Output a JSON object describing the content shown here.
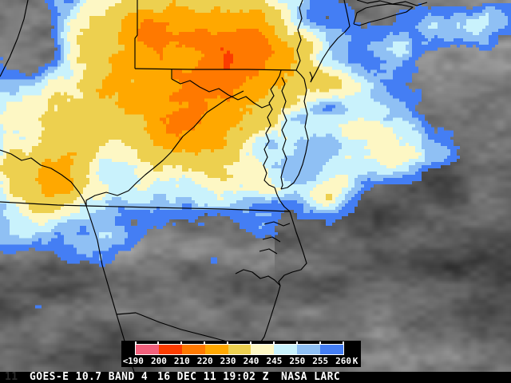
{
  "status_bar": {
    "corner": "11",
    "product": "GOES-E 10.7 BAND 4",
    "timestamp": "16 DEC 11 19:02 Z",
    "agency": "NASA LARC",
    "text_color": "#FFFFFF",
    "bg": "#000000"
  },
  "legend": {
    "prefix": "<",
    "ticks": [
      "190",
      "200",
      "210",
      "220",
      "230",
      "240",
      "245",
      "250",
      "255",
      "260"
    ],
    "unit": "K",
    "panel_bg": "#000000",
    "frame_color": "#FFFFFF"
  },
  "map": {
    "boundary_color": "#000000",
    "cold_cloud_bands": [
      {
        "max_k": 200,
        "color": "#F1607C"
      },
      {
        "max_k": 210,
        "color": "#FB3C00"
      },
      {
        "max_k": 220,
        "color": "#FF7900"
      },
      {
        "max_k": 230,
        "color": "#FFA800"
      },
      {
        "max_k": 240,
        "color": "#EDD04F"
      },
      {
        "max_k": 245,
        "color": "#FDF7C4"
      },
      {
        "max_k": 250,
        "color": "#C9F2FC"
      },
      {
        "max_k": 255,
        "color": "#8FC0F4"
      },
      {
        "max_k": 260,
        "color": "#447EF4"
      }
    ],
    "cold_blobs": [
      [
        225,
        105,
        190,
        140,
        44
      ],
      [
        255,
        55,
        95,
        50,
        16
      ],
      [
        150,
        25,
        85,
        35,
        10
      ],
      [
        235,
        168,
        75,
        40,
        13
      ],
      [
        62,
        148,
        48,
        55,
        12
      ],
      [
        55,
        212,
        55,
        38,
        12
      ],
      [
        65,
        245,
        65,
        50,
        26
      ],
      [
        340,
        60,
        70,
        65,
        12
      ],
      [
        420,
        100,
        26,
        20,
        10
      ],
      [
        330,
        240,
        45,
        25,
        14
      ],
      [
        405,
        252,
        42,
        20,
        15
      ],
      [
        450,
        150,
        55,
        42,
        16
      ],
      [
        510,
        178,
        55,
        35,
        12
      ],
      [
        470,
        205,
        50,
        28,
        12
      ],
      [
        545,
        200,
        25,
        15,
        10
      ],
      [
        560,
        32,
        55,
        30,
        12
      ],
      [
        612,
        22,
        28,
        22,
        13
      ],
      [
        495,
        62,
        38,
        26,
        11
      ],
      [
        600,
        60,
        35,
        25,
        9
      ],
      [
        48,
        387,
        9,
        8,
        14
      ],
      [
        95,
        315,
        40,
        22,
        10
      ],
      [
        25,
        300,
        45,
        30,
        10
      ],
      [
        150,
        298,
        28,
        14,
        9
      ],
      [
        5,
        60,
        30,
        90,
        12
      ],
      [
        8,
        180,
        25,
        60,
        10
      ],
      [
        430,
        235,
        45,
        25,
        10
      ]
    ],
    "warm_spots": [
      [
        28,
        55,
        42,
        48,
        26
      ],
      [
        240,
        72,
        30,
        16,
        14
      ],
      [
        415,
        135,
        22,
        10,
        10
      ],
      [
        398,
        18,
        26,
        18,
        12
      ]
    ],
    "borders": [
      [
        0,
        96,
        12,
        72,
        22,
        48,
        30,
        24,
        35,
        0
      ],
      [
        172,
        0,
        172,
        44,
        169,
        48,
        169,
        86
      ],
      [
        169,
        86,
        240,
        87,
        310,
        87,
        371,
        88
      ],
      [
        215,
        87,
        215,
        99
      ],
      [
        215,
        99,
        226,
        105,
        238,
        101,
        250,
        109,
        262,
        115,
        274,
        111,
        286,
        119,
        298,
        125,
        308,
        121,
        318,
        129,
        328,
        135,
        338,
        131
      ],
      [
        305,
        114,
        293,
        120,
        284,
        124,
        271,
        133,
        259,
        141,
        243,
        159,
        229,
        171,
        214,
        191,
        204,
        201,
        192,
        211,
        182,
        219,
        171,
        229,
        161,
        239,
        147,
        245,
        133,
        241,
        119,
        245,
        108,
        251,
        108,
        258
      ],
      [
        0,
        188,
        14,
        193,
        27,
        201,
        39,
        198,
        51,
        207,
        64,
        211,
        77,
        219,
        89,
        228,
        99,
        241,
        105,
        251,
        108,
        258
      ],
      [
        0,
        253,
        36,
        255,
        72,
        257,
        108,
        258
      ],
      [
        108,
        258,
        190,
        260,
        280,
        262,
        363,
        265
      ],
      [
        108,
        258,
        115,
        279,
        122,
        301,
        128,
        332,
        137,
        363,
        146,
        394,
        155,
        424,
        163,
        452,
        168,
        466
      ],
      [
        146,
        394,
        170,
        392,
        200,
        404,
        227,
        413,
        262,
        422,
        292,
        430,
        318,
        436
      ],
      [
        318,
        436,
        325,
        431,
        331,
        422,
        337,
        404,
        343,
        385,
        348,
        369,
        351,
        358
      ],
      [
        351,
        358,
        344,
        351,
        336,
        346,
        326,
        349,
        316,
        341,
        305,
        338,
        295,
        343
      ],
      [
        363,
        265,
        367,
        278,
        371,
        291,
        376,
        305,
        380,
        317,
        384,
        330,
        377,
        338,
        366,
        341,
        356,
        345,
        349,
        353,
        351,
        358
      ],
      [
        331,
        281,
        343,
        278,
        355,
        283,
        363,
        280
      ],
      [
        329,
        300,
        341,
        297,
        351,
        303
      ],
      [
        325,
        315,
        337,
        312,
        347,
        318
      ],
      [
        350,
        95,
        345,
        104,
        339,
        112,
        343,
        120,
        337,
        129,
        341,
        137,
        335,
        147,
        339,
        157,
        333,
        167,
        337,
        177,
        331,
        187,
        335,
        197,
        330,
        207,
        334,
        217,
        331,
        226,
        337,
        232,
        344,
        235
      ],
      [
        353,
        97,
        357,
        105,
        353,
        114,
        358,
        127,
        354,
        139,
        359,
        151,
        353,
        163,
        358,
        175,
        354,
        187,
        359,
        199,
        355,
        211,
        352,
        222,
        354,
        232,
        352,
        237
      ],
      [
        381,
        99,
        384,
        113,
        381,
        127,
        385,
        143,
        382,
        159,
        386,
        175,
        383,
        191,
        379,
        206,
        374,
        219,
        368,
        229,
        360,
        235,
        352,
        237
      ],
      [
        344,
        235,
        347,
        244,
        351,
        252,
        356,
        259,
        363,
        265
      ],
      [
        371,
        88,
        376,
        76,
        372,
        63,
        377,
        50,
        373,
        37,
        378,
        23,
        375,
        10,
        379,
        0
      ],
      [
        371,
        88,
        377,
        94,
        381,
        99
      ],
      [
        388,
        90,
        391,
        97,
        389,
        103
      ],
      [
        389,
        103,
        396,
        90,
        404,
        74,
        413,
        60,
        423,
        48,
        432,
        40,
        438,
        33
      ],
      [
        438,
        33,
        435,
        18,
        431,
        0
      ],
      [
        443,
        30,
        447,
        16,
        458,
        10,
        472,
        7,
        487,
        5,
        503,
        6,
        517,
        9,
        509,
        15,
        494,
        19,
        478,
        24,
        462,
        28,
        450,
        32,
        443,
        30
      ],
      [
        447,
        0,
        460,
        4,
        476,
        1,
        492,
        5,
        508,
        2,
        522,
        7,
        535,
        3
      ],
      [
        350,
        95,
        352,
        88
      ]
    ]
  }
}
